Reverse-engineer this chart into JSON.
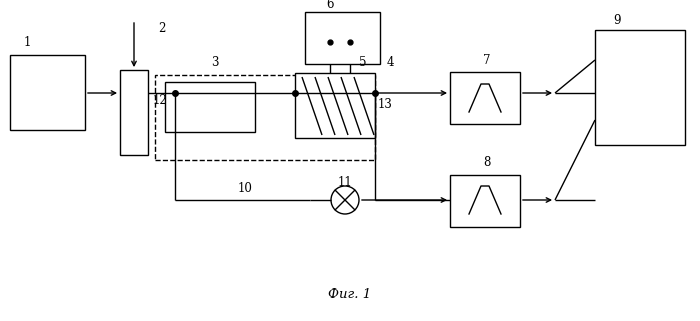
{
  "title": "Фиг. 1",
  "bg_color": "#ffffff",
  "line_color": "#000000",
  "figsize": [
    7.0,
    3.21
  ],
  "dpi": 100
}
